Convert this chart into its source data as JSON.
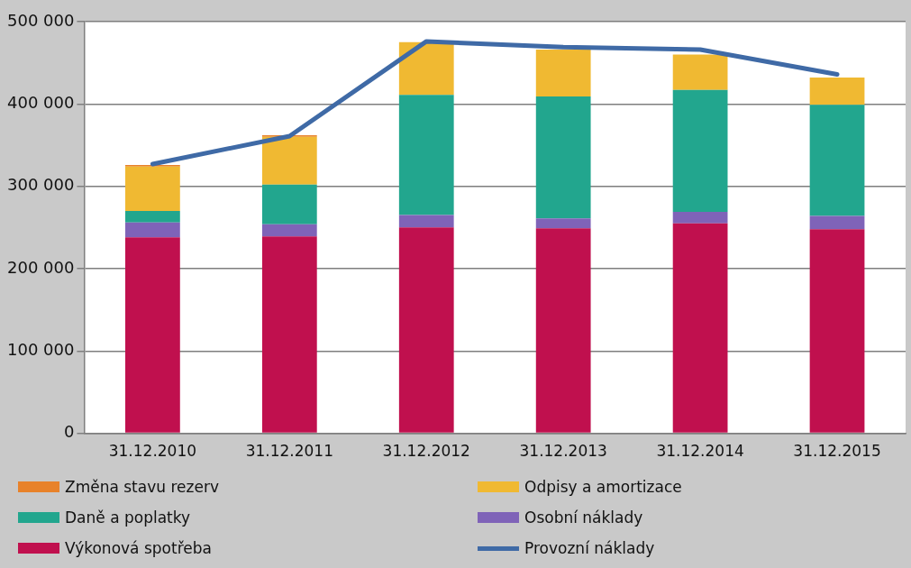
{
  "chart_data": {
    "type": "bar",
    "stacked": true,
    "categories": [
      "31.12.2010",
      "31.12.2011",
      "31.12.2012",
      "31.12.2013",
      "31.12.2014",
      "31.12.2015"
    ],
    "series": [
      {
        "name": "Výkonová spotřeba",
        "color": "#c0104e",
        "values": [
          238000,
          239000,
          250000,
          249000,
          255000,
          248000
        ]
      },
      {
        "name": "Osobní náklady",
        "color": "#7f63b8",
        "values": [
          18000,
          15000,
          15000,
          12000,
          14000,
          16000
        ]
      },
      {
        "name": "Daně a poplatky",
        "color": "#22a68e",
        "values": [
          14000,
          48000,
          146000,
          148000,
          148000,
          135000
        ]
      },
      {
        "name": "Odpisy a amortizace",
        "color": "#f0b932",
        "values": [
          54000,
          58000,
          64000,
          57000,
          43000,
          33000
        ]
      },
      {
        "name": "Změna stavu rezerv",
        "color": "#e8822a",
        "values": [
          2000,
          2000,
          null,
          0,
          0,
          0
        ]
      },
      {
        "name": "Provozní náklady",
        "type": "line",
        "color": "#3f6aa6",
        "values": [
          327000,
          361000,
          476000,
          469000,
          466000,
          436000
        ]
      }
    ],
    "ylim": [
      0,
      500000
    ],
    "yticks": [
      {
        "value": 0,
        "label": "0"
      },
      {
        "value": 100000,
        "label": "100 000"
      },
      {
        "value": 200000,
        "label": "200 000"
      },
      {
        "value": 300000,
        "label": "300 000"
      },
      {
        "value": 400000,
        "label": "400 000"
      },
      {
        "value": 500000,
        "label": "500 000"
      }
    ],
    "grid": "y",
    "legend": "bottom",
    "marker": "none",
    "line_style": "solid"
  }
}
